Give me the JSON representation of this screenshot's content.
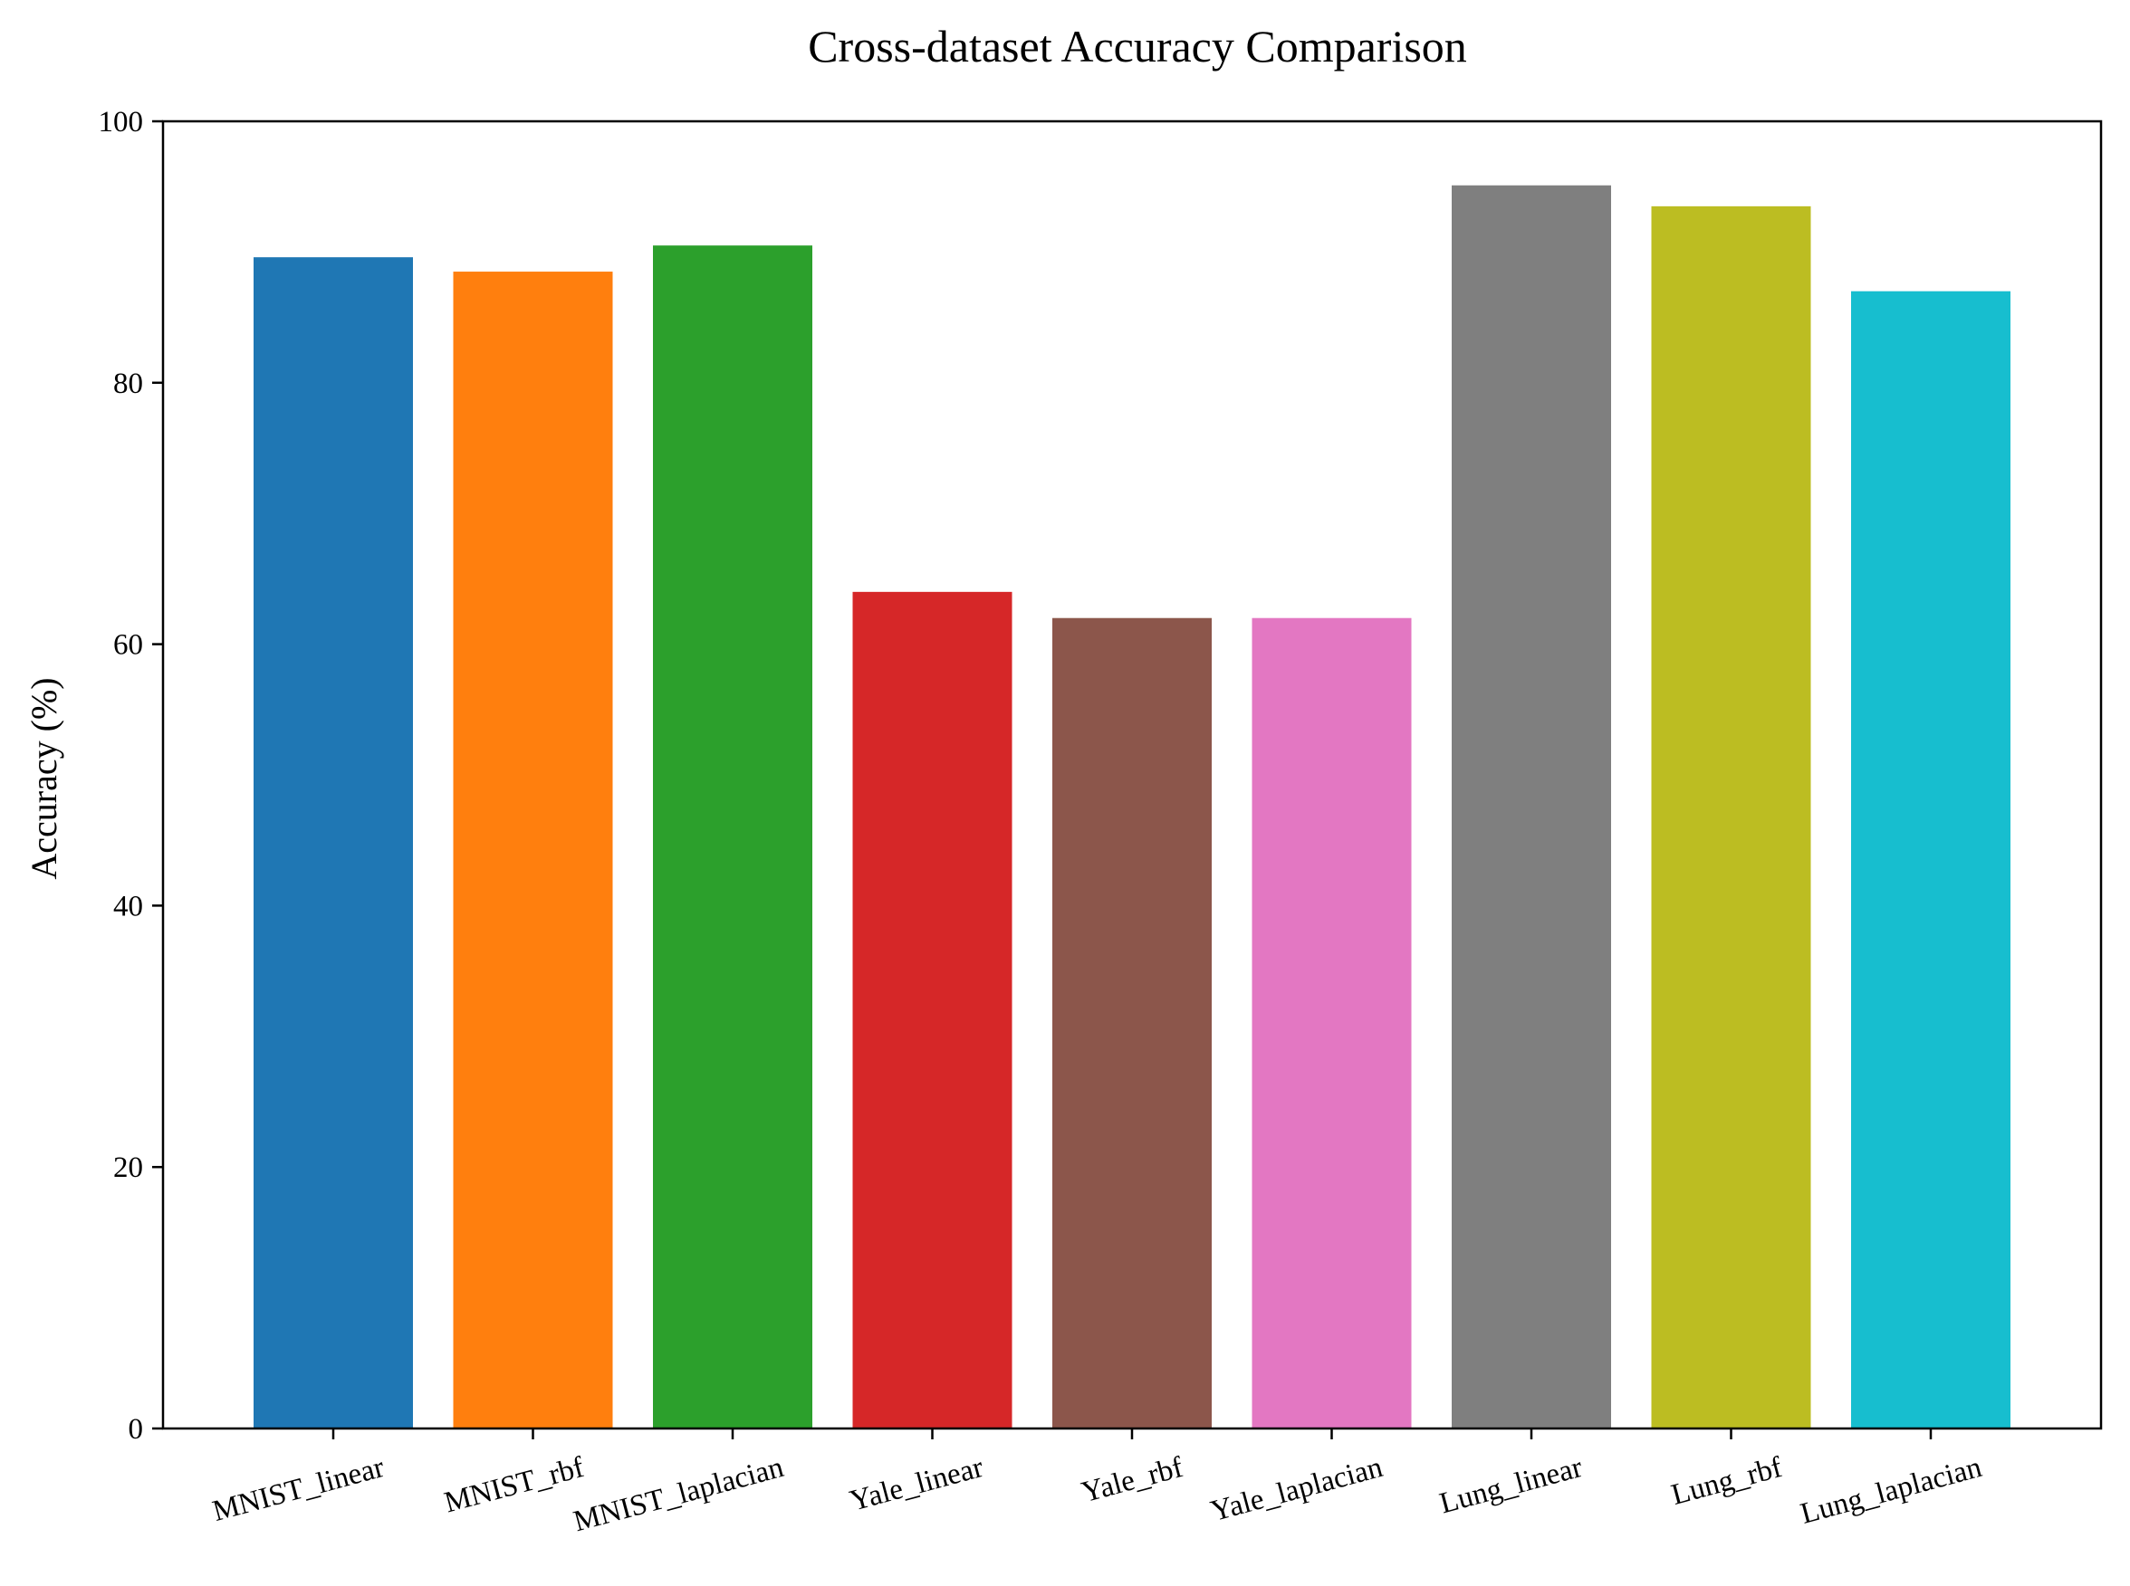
{
  "chart_data": {
    "type": "bar",
    "title": "Cross-dataset Accuracy Comparison",
    "xlabel": "",
    "ylabel": "Accuracy (%)",
    "ylim": [
      0,
      100
    ],
    "yticks": [
      0,
      20,
      40,
      60,
      80,
      100
    ],
    "grid": false,
    "legend": "none",
    "categories": [
      "MNIST_linear",
      "MNIST_rbf",
      "MNIST_laplacian",
      "Yale_linear",
      "Yale_rbf",
      "Yale_laplacian",
      "Lung_linear",
      "Lung_rbf",
      "Lung_laplacian"
    ],
    "values": [
      89.6,
      88.5,
      90.5,
      64.0,
      62.0,
      62.0,
      95.1,
      93.5,
      87.0
    ],
    "colors": [
      "#1f77b4",
      "#ff7f0e",
      "#2ca02c",
      "#d62728",
      "#8c564b",
      "#e377c2",
      "#7f7f7f",
      "#bcbd22",
      "#17becf"
    ]
  }
}
